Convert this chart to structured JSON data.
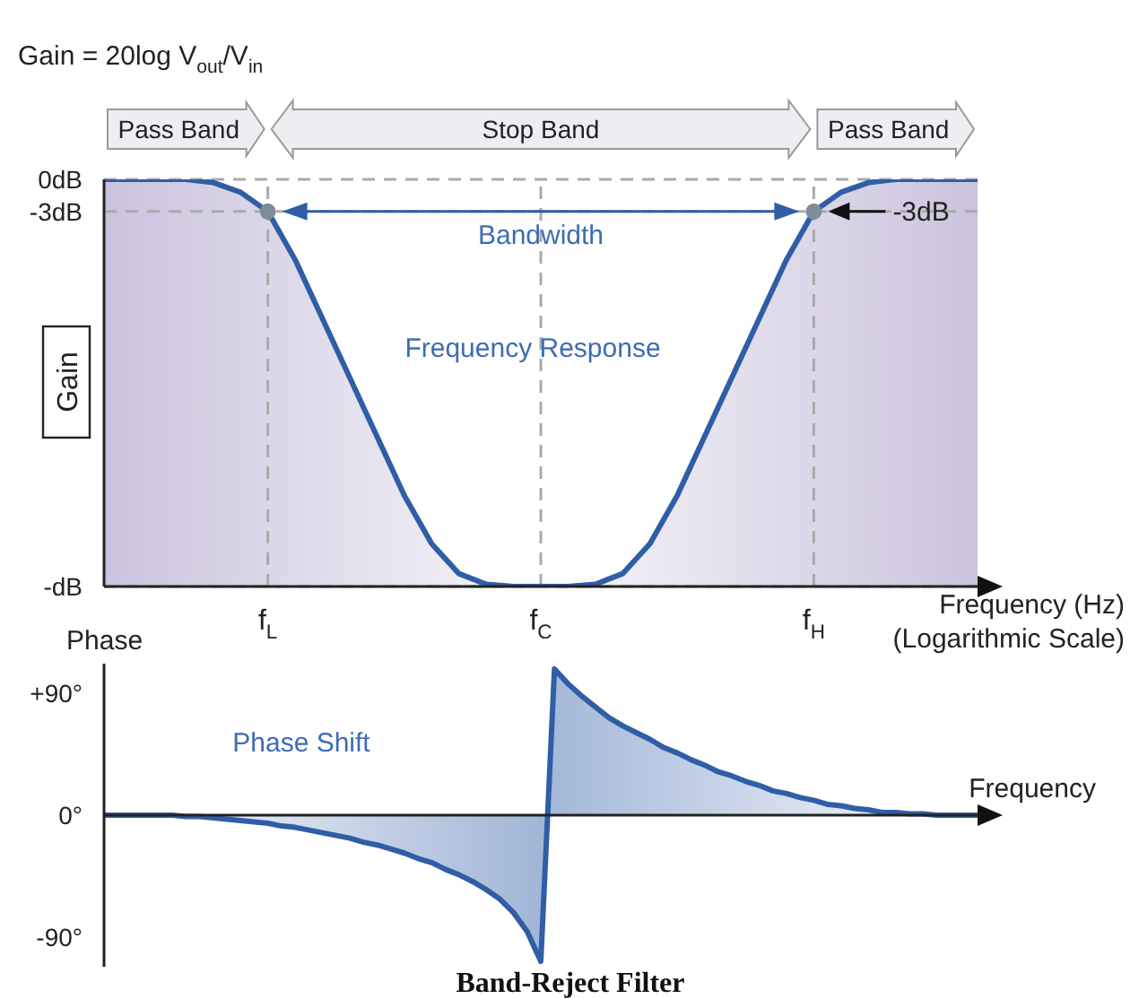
{
  "chart_data": [
    {
      "type": "line",
      "ylabel": "Gain",
      "xlabel": "Frequency (Hz)\n(Logarithmic Scale)",
      "categories": [
        null,
        null,
        null,
        null,
        null,
        null,
        "f$_{L}$",
        null,
        null,
        null,
        null,
        null,
        null,
        null,
        null,
        null,
        "f$_{C}$",
        null,
        null,
        null,
        null,
        null,
        null,
        null,
        null,
        null,
        "f$_{H}$",
        null,
        null,
        null,
        null,
        null,
        null
      ],
      "ylim": [
        -38,
        0
      ],
      "yticks": [
        {
          "value": 0,
          "label": "0dB"
        },
        {
          "value": -3,
          "label": "-3dB"
        },
        {
          "value": -38,
          "label": "-dB"
        }
      ],
      "grid": "y",
      "legend": false,
      "series": [
        {
          "color": "#2f5ea6",
          "values": [
            0,
            0,
            0,
            0,
            -0.3,
            -1.2,
            -3,
            -7.5,
            -13,
            -18.5,
            -24,
            -29.5,
            -34,
            -36.8,
            -37.8,
            -38,
            -38,
            -38,
            -37.8,
            -36.8,
            -34,
            -29.5,
            -24,
            -18.5,
            -13,
            -7.5,
            -3,
            -1.2,
            -0.3,
            0,
            0,
            0,
            0
          ]
        }
      ],
      "ref_lines": [
        {
          "axis": "x",
          "value": "f$_{L}$",
          "line_style": "dashed"
        },
        {
          "axis": "x",
          "value": "f$_{C}$",
          "line_style": "dashed"
        },
        {
          "axis": "x",
          "value": "f$_{H}$",
          "line_style": "dashed"
        }
      ],
      "annotations": [
        "Gain = 20log V$_{out}$/V$_{in}$",
        "Pass Band",
        "Stop Band",
        "Pass Band",
        {
          "text": "Bandwidth",
          "x": "f$_{C}$",
          "y": -3
        },
        {
          "text": "-3dB",
          "x": "f$_{H}$",
          "y": -3
        },
        "Frequency Response"
      ]
    },
    {
      "type": "area",
      "ylabel": "Phase",
      "xlabel": "Frequency",
      "categories": [
        null,
        null,
        null,
        null,
        null,
        null,
        null,
        null,
        null,
        null,
        null,
        null,
        null,
        null,
        null,
        null,
        null,
        null,
        null,
        null,
        null,
        null,
        null,
        null,
        null,
        null,
        null,
        null,
        null,
        null,
        null,
        null,
        null,
        null,
        null,
        null,
        null,
        null,
        null,
        null,
        null,
        null,
        null,
        null,
        null,
        null,
        null,
        null,
        null,
        null,
        null,
        null,
        null,
        null,
        null,
        null,
        null,
        null,
        null,
        null,
        null,
        null,
        null,
        null,
        null
      ],
      "ylim": [
        -112,
        112
      ],
      "yticks": [
        {
          "value": 90,
          "label": "+90°"
        },
        {
          "value": 0,
          "label": "0°"
        },
        {
          "value": -90,
          "label": "-90°"
        }
      ],
      "tick_labels": "y",
      "grid": false,
      "legend": false,
      "ref_lines": [
        {
          "axis": "y",
          "value": 0,
          "color": "#222222"
        }
      ],
      "series": [
        {
          "color": "#2f5ea6",
          "values": [
            0,
            0,
            0,
            0,
            0,
            0,
            -1,
            -1,
            -2,
            -3,
            -4,
            -5,
            -6,
            -8,
            -9,
            -11,
            -13,
            -15,
            -17,
            -20,
            -22,
            -25,
            -28,
            -32,
            -35,
            -40,
            -44,
            -49,
            -55,
            -62,
            -72,
            -86,
            -108,
            108,
            97,
            88,
            80,
            72,
            66,
            61,
            56,
            50,
            46,
            41,
            37,
            32,
            29,
            25,
            22,
            18,
            16,
            13,
            11,
            8,
            7,
            5,
            4,
            2,
            2,
            1,
            1,
            0,
            0,
            0,
            0
          ]
        }
      ],
      "annotations": [
        "Phase Shift",
        "Band-Reject Filter"
      ]
    }
  ]
}
